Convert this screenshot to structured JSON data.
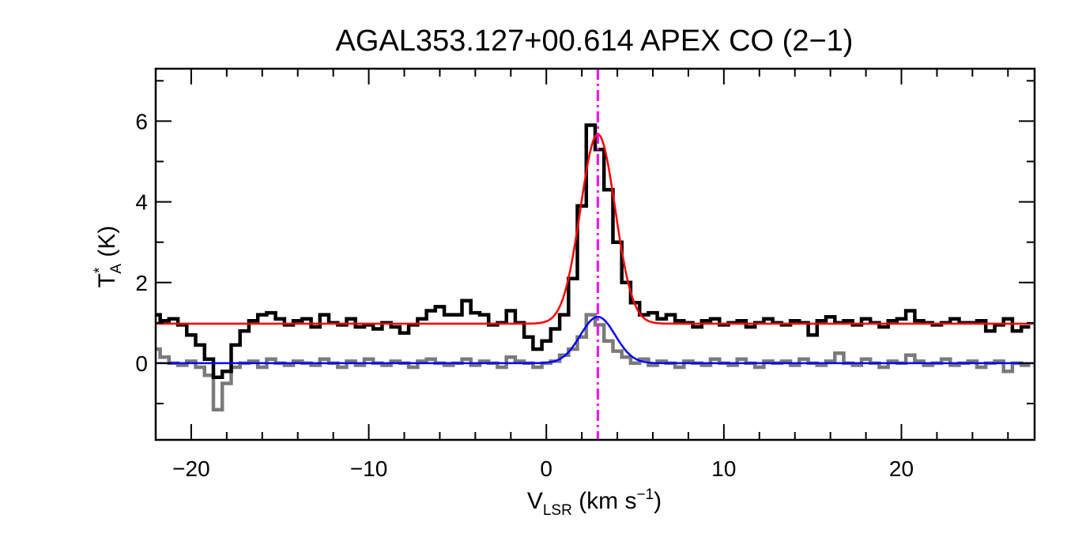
{
  "chart_data": {
    "type": "line",
    "title": "AGAL353.127+00.614  APEX CO (2−1)",
    "xlabel": {
      "main": "V",
      "sub": "LSR",
      "rest": " (km s",
      "sup": "−1",
      "close": ")"
    },
    "ylabel": {
      "main": "T",
      "sup": "*",
      "sub": "A",
      "rest": " (K)"
    },
    "xlim": [
      -22,
      27.5
    ],
    "ylim": [
      -1.9,
      7.3
    ],
    "xticks": [
      -20,
      -10,
      0,
      10,
      20
    ],
    "xtick_labels": [
      "−20",
      "−10",
      "0",
      "10",
      "20"
    ],
    "yticks": [
      0,
      2,
      4,
      6
    ],
    "ytick_labels": [
      "0",
      "2",
      "4",
      "6"
    ],
    "grid": false,
    "colors": {
      "observed": "#000000",
      "residual": "#7a7a7a",
      "fit": "#ff0000",
      "component": "#0000ff",
      "vlsr_marker": "#ff00ff"
    },
    "vlsr_marker": 2.9,
    "fit": {
      "baseline": 0.98,
      "amplitude": 4.7,
      "center": 2.9,
      "fwhm": 2.3
    },
    "component": {
      "baseline": 0.0,
      "amplitude": 1.15,
      "center": 2.9,
      "fwhm": 2.3
    },
    "series": [
      {
        "x": [
          -22.0,
          -21.5,
          -21.0,
          -20.5,
          -20.0,
          -19.5,
          -19.0,
          -18.5,
          -18.0,
          -17.5,
          -17.0,
          -16.5,
          -16.0,
          -15.5,
          -15.0,
          -14.5,
          -14.0,
          -13.5,
          -13.0,
          -12.5,
          -12.0,
          -11.5,
          -11.0,
          -10.5,
          -10.0,
          -9.5,
          -9.0,
          -8.5,
          -8.0,
          -7.5,
          -7.0,
          -6.5,
          -6.0,
          -5.5,
          -5.0,
          -4.5,
          -4.0,
          -3.5,
          -3.0,
          -2.5,
          -2.0,
          -1.5,
          -1.0,
          -0.5,
          0.0,
          0.5,
          1.0,
          1.5,
          2.0,
          2.5,
          3.0,
          3.5,
          4.0,
          4.5,
          5.0,
          5.5,
          6.0,
          6.5,
          7.0,
          7.5,
          8.0,
          8.5,
          9.0,
          9.5,
          10.0,
          10.5,
          11.0,
          11.5,
          12.0,
          12.5,
          13.0,
          13.5,
          14.0,
          14.5,
          15.0,
          15.5,
          16.0,
          16.5,
          17.0,
          17.5,
          18.0,
          18.5,
          19.0,
          19.5,
          20.0,
          20.5,
          21.0,
          21.5,
          22.0,
          22.5,
          23.0,
          23.5,
          24.0,
          24.5,
          25.0,
          25.5,
          26.0,
          26.5,
          27.0
        ],
        "values": [
          1.2,
          1.05,
          1.1,
          0.95,
          0.7,
          0.45,
          0.1,
          -0.35,
          -0.2,
          0.45,
          0.8,
          1.05,
          1.2,
          1.25,
          1.1,
          0.95,
          1.05,
          1.1,
          0.9,
          1.2,
          1.0,
          0.95,
          1.1,
          0.9,
          0.95,
          0.85,
          1.0,
          0.9,
          0.75,
          0.95,
          1.1,
          1.3,
          1.4,
          1.2,
          1.2,
          1.55,
          1.25,
          1.2,
          0.95,
          1.0,
          1.3,
          1.0,
          0.65,
          0.35,
          0.55,
          0.85,
          1.2,
          2.1,
          3.9,
          5.9,
          5.3,
          4.3,
          3.0,
          2.0,
          1.5,
          1.2,
          1.25,
          1.1,
          1.2,
          1.05,
          1.0,
          0.9,
          1.05,
          1.1,
          0.95,
          1.0,
          1.05,
          0.9,
          1.0,
          1.1,
          1.0,
          0.95,
          1.05,
          1.0,
          0.7,
          1.05,
          1.15,
          1.0,
          1.05,
          0.95,
          1.1,
          1.0,
          0.9,
          1.05,
          1.1,
          1.3,
          1.05,
          1.0,
          0.95,
          1.0,
          1.1,
          1.0,
          1.0,
          1.05,
          0.8,
          0.95,
          1.1,
          0.8,
          0.9
        ],
        "name": ""
      },
      {
        "x": [
          -22.0,
          -21.5,
          -21.0,
          -20.5,
          -20.0,
          -19.5,
          -19.0,
          -18.5,
          -18.0,
          -17.5,
          -17.0,
          -16.5,
          -16.0,
          -15.5,
          -15.0,
          -14.5,
          -14.0,
          -13.5,
          -13.0,
          -12.5,
          -12.0,
          -11.5,
          -11.0,
          -10.5,
          -10.0,
          -9.5,
          -9.0,
          -8.5,
          -8.0,
          -7.5,
          -7.0,
          -6.5,
          -6.0,
          -5.5,
          -5.0,
          -4.5,
          -4.0,
          -3.5,
          -3.0,
          -2.5,
          -2.0,
          -1.5,
          -1.0,
          -0.5,
          0.0,
          0.5,
          1.0,
          1.5,
          2.0,
          2.5,
          3.0,
          3.5,
          4.0,
          4.5,
          5.0,
          5.5,
          6.0,
          6.5,
          7.0,
          7.5,
          8.0,
          8.5,
          9.0,
          9.5,
          10.0,
          10.5,
          11.0,
          11.5,
          12.0,
          12.5,
          13.0,
          13.5,
          14.0,
          14.5,
          15.0,
          15.5,
          16.0,
          16.5,
          17.0,
          17.5,
          18.0,
          18.5,
          19.0,
          19.5,
          20.0,
          20.5,
          21.0,
          21.5,
          22.0,
          22.5,
          23.0,
          23.5,
          24.0,
          24.5,
          25.0,
          25.5,
          26.0,
          26.5,
          27.0
        ],
        "values": [
          0.35,
          0.15,
          0.0,
          -0.05,
          0.05,
          -0.1,
          -0.3,
          -1.15,
          -0.5,
          -0.1,
          0.0,
          0.05,
          -0.1,
          0.1,
          0.0,
          -0.05,
          0.05,
          0.0,
          -0.05,
          0.1,
          0.0,
          -0.1,
          0.05,
          -0.05,
          0.1,
          0.0,
          -0.05,
          0.05,
          0.0,
          -0.1,
          0.05,
          0.1,
          0.0,
          -0.05,
          0.0,
          0.1,
          -0.05,
          0.05,
          0.0,
          -0.1,
          0.15,
          0.05,
          0.0,
          -0.1,
          0.0,
          0.05,
          0.2,
          0.35,
          0.65,
          1.2,
          0.95,
          0.55,
          0.3,
          0.15,
          0.0,
          0.1,
          -0.05,
          0.05,
          0.0,
          -0.1,
          0.05,
          0.0,
          -0.05,
          0.1,
          0.0,
          -0.05,
          0.1,
          0.0,
          -0.1,
          0.05,
          0.0,
          0.05,
          -0.05,
          0.1,
          0.0,
          -0.05,
          0.05,
          0.25,
          0.0,
          -0.05,
          0.1,
          0.0,
          -0.1,
          0.05,
          0.0,
          0.2,
          0.05,
          -0.05,
          0.0,
          0.1,
          -0.05,
          0.0,
          0.05,
          -0.1,
          0.0,
          0.05,
          -0.2,
          0.0,
          -0.05
        ],
        "name": ""
      }
    ]
  }
}
